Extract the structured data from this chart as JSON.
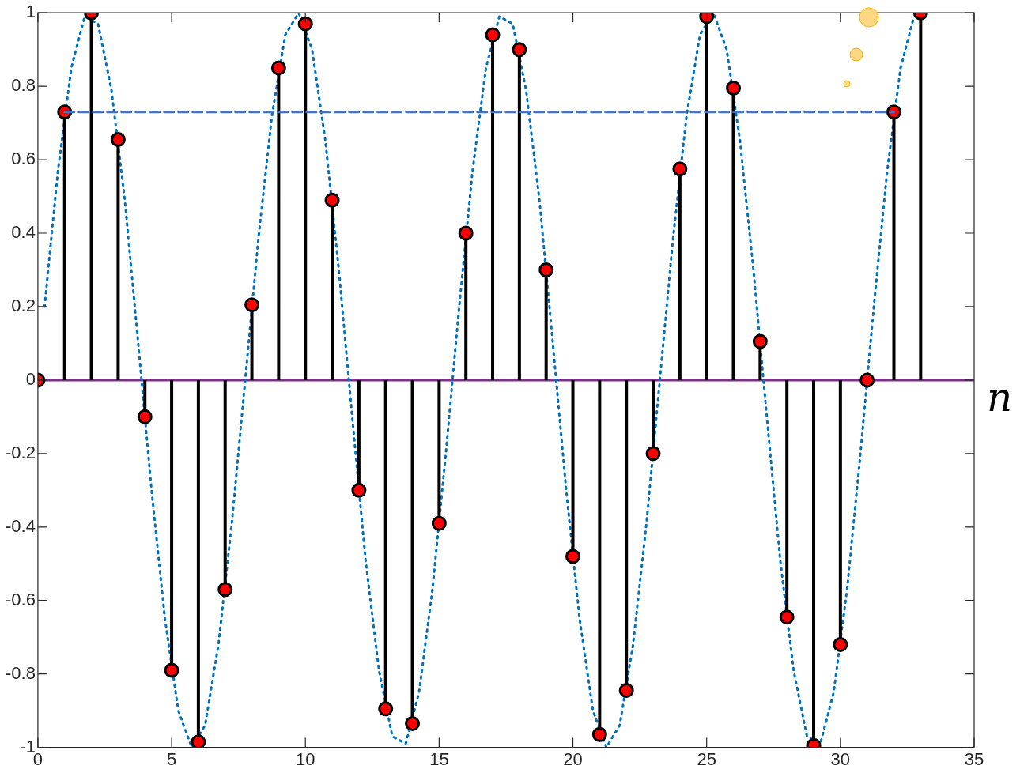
{
  "chart_data": {
    "type": "lollipop",
    "xlabel": "n",
    "xlim": [
      0,
      35
    ],
    "xticks": [
      0,
      5,
      10,
      15,
      20,
      25,
      30,
      35
    ],
    "ylim": [
      -1,
      1
    ],
    "yticks": [
      -1,
      -0.8,
      -0.6,
      -0.4,
      -0.2,
      0,
      0.2,
      0.4,
      0.6,
      0.8,
      1
    ],
    "grid": false,
    "legend": false,
    "ref_lines": [
      {
        "axis": "y",
        "value": 0,
        "color": "#7e2f8e"
      }
    ],
    "series": [
      {
        "type": "line",
        "color": "#0072bd",
        "line_style": "dotted",
        "marker": "none",
        "x": [
          0.25,
          0.75,
          1.25,
          1.75,
          2.25,
          2.75,
          3.25,
          3.75,
          4.25,
          4.75,
          5.25,
          5.75,
          6.25,
          6.75,
          7.25,
          7.75,
          8.25,
          8.75,
          9.25,
          9.75,
          10.25,
          10.75,
          11.25,
          11.75,
          12.25,
          12.75,
          13.25,
          13.75,
          14.25,
          14.75,
          15.25,
          15.75,
          16.25,
          16.75,
          17.25,
          17.75,
          18.25,
          18.75,
          19.25,
          19.75,
          20.25,
          20.75,
          21.25,
          21.75,
          22.25,
          22.75,
          23.25,
          23.75,
          24.25,
          24.75,
          25.25,
          25.75,
          26.25,
          26.75,
          27.25,
          27.75,
          28.25,
          28.75,
          29.25,
          29.75,
          30.25,
          30.75,
          31.25,
          31.75,
          32.25,
          32.75
        ],
        "values": [
          0.2,
          0.57,
          0.85,
          0.99,
          0.97,
          0.79,
          0.49,
          0.1,
          -0.3,
          -0.65,
          -0.9,
          -1.0,
          -0.94,
          -0.72,
          -0.39,
          0,
          0.39,
          0.72,
          0.94,
          1.0,
          0.9,
          0.65,
          0.3,
          -0.1,
          -0.49,
          -0.79,
          -0.97,
          -0.99,
          -0.85,
          -0.57,
          -0.2,
          0.2,
          0.57,
          0.85,
          0.99,
          0.97,
          0.79,
          0.49,
          0.1,
          -0.3,
          -0.65,
          -0.9,
          -1.0,
          -0.94,
          -0.72,
          -0.39,
          0,
          0.39,
          0.72,
          0.94,
          1.0,
          0.9,
          0.65,
          0.3,
          -0.1,
          -0.49,
          -0.79,
          -0.97,
          -0.99,
          -0.85,
          -0.57,
          -0.2,
          0.2,
          0.57,
          0.85,
          0.99
        ]
      },
      {
        "type": "line",
        "color": "#4472c4",
        "line_style": "dashed",
        "marker": "none",
        "x": [
          1,
          32
        ],
        "values": [
          0.73,
          0.73
        ]
      },
      {
        "color": "#ff0000",
        "marker": "circle",
        "x": [
          0,
          1,
          2,
          3,
          4,
          5,
          6,
          7,
          8,
          9,
          10,
          11,
          12,
          13,
          14,
          15,
          16,
          17,
          18,
          19,
          20,
          21,
          22,
          23,
          24,
          25,
          26,
          27,
          28,
          29,
          30,
          31,
          32,
          33
        ],
        "values": [
          0,
          0.73,
          1.0,
          0.655,
          -0.1,
          -0.79,
          -0.985,
          -0.57,
          0.205,
          0.85,
          0.97,
          0.49,
          -0.3,
          -0.895,
          -0.935,
          -0.39,
          0.4,
          0.94,
          0.9,
          0.3,
          -0.48,
          -0.965,
          -0.845,
          -0.2,
          0.575,
          0.99,
          0.795,
          0.105,
          -0.645,
          -0.995,
          -0.72,
          0,
          0.73,
          1.0
        ]
      }
    ]
  }
}
